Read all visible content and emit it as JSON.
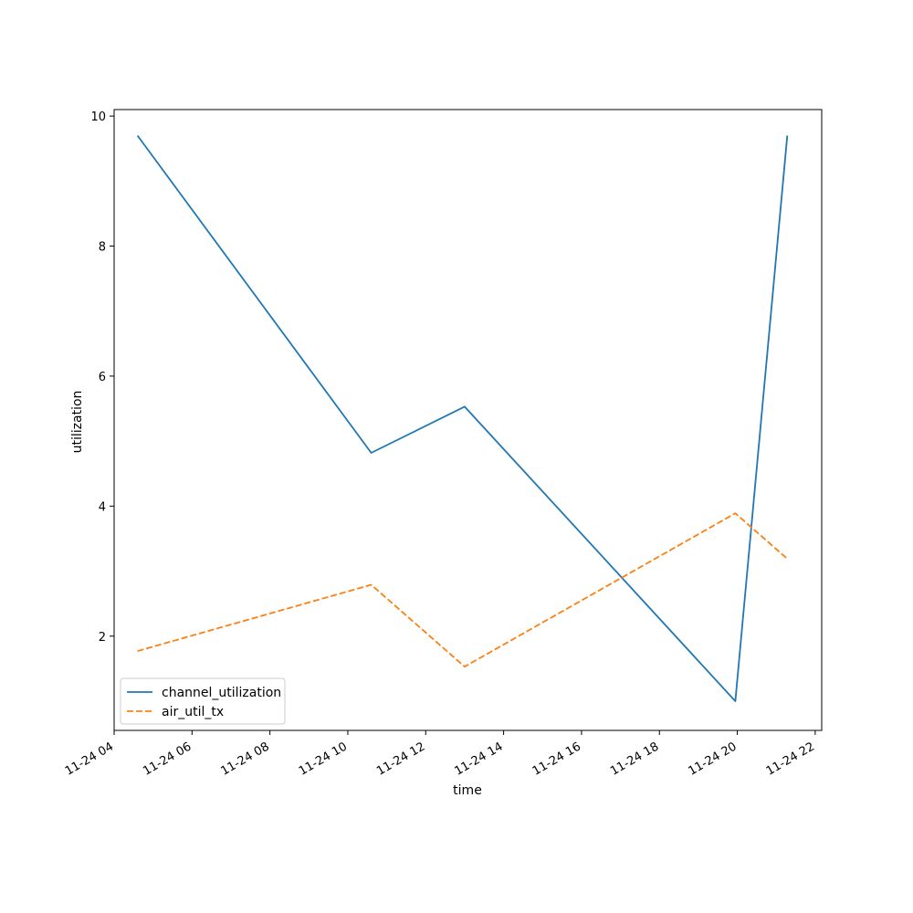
{
  "chart_data": {
    "type": "line",
    "title": "",
    "xlabel": "time",
    "ylabel": "utilization",
    "xlim": [
      "11-24 04:00",
      "11-24 22:10"
    ],
    "ylim": [
      0.55,
      10.1
    ],
    "x_ticks": [
      "11-24 04",
      "11-24 06",
      "11-24 08",
      "11-24 10",
      "11-24 12",
      "11-24 14",
      "11-24 16",
      "11-24 18",
      "11-24 20",
      "11-24 22"
    ],
    "y_ticks": [
      2,
      4,
      6,
      8,
      10
    ],
    "grid": false,
    "legend": "lower-left",
    "x": [
      "11-24 04:36",
      "11-24 10:36",
      "11-24 13:00",
      "11-24 19:57",
      "11-24 21:17"
    ],
    "series": [
      {
        "name": "channel_utilization",
        "values": [
          9.7,
          4.82,
          5.53,
          1.0,
          9.7
        ],
        "color": "#1f77b4",
        "style": "solid"
      },
      {
        "name": "air_util_tx",
        "values": [
          1.77,
          2.79,
          1.53,
          3.89,
          3.19
        ],
        "color": "#ff7f0e",
        "style": "dashed"
      }
    ]
  }
}
